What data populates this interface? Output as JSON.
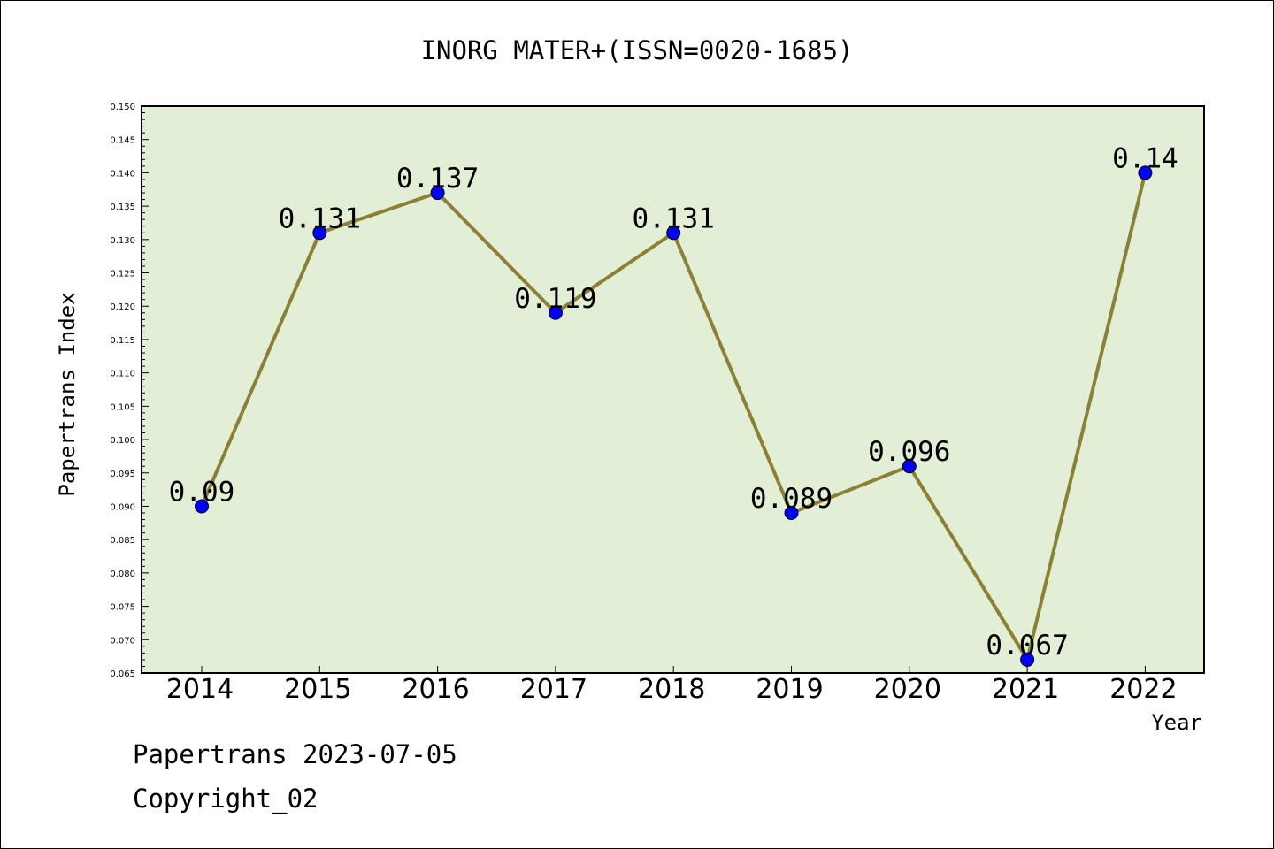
{
  "chart_data": {
    "type": "line",
    "title": "INORG MATER+(ISSN=0020-1685)",
    "xlabel": "Year",
    "ylabel": "Papertrans Index",
    "categories": [
      "2014",
      "2015",
      "2016",
      "2017",
      "2018",
      "2019",
      "2020",
      "2021",
      "2022"
    ],
    "series": [
      {
        "values": [
          0.09,
          0.131,
          0.137,
          0.119,
          0.131,
          0.089,
          0.096,
          0.067,
          0.14
        ]
      }
    ],
    "data_labels": [
      "0.09",
      "0.131",
      "0.137",
      "0.119",
      "0.131",
      "0.089",
      "0.096",
      "0.067",
      "0.14"
    ],
    "ylim": [
      0.065,
      0.15
    ],
    "yticks": [
      "0.065",
      "0.070",
      "0.075",
      "0.080",
      "0.085",
      "0.090",
      "0.095",
      "0.100",
      "0.105",
      "0.110",
      "0.115",
      "0.120",
      "0.125",
      "0.130",
      "0.135",
      "0.140",
      "0.145",
      "0.150"
    ],
    "grid": false,
    "legend": "none",
    "colors": {
      "plot_background": "#e2efd6",
      "line": "#8b8036",
      "marker": "#0000ff"
    }
  },
  "footer": {
    "line1": "Papertrans 2023-07-05",
    "line2": "Copyright_02"
  }
}
